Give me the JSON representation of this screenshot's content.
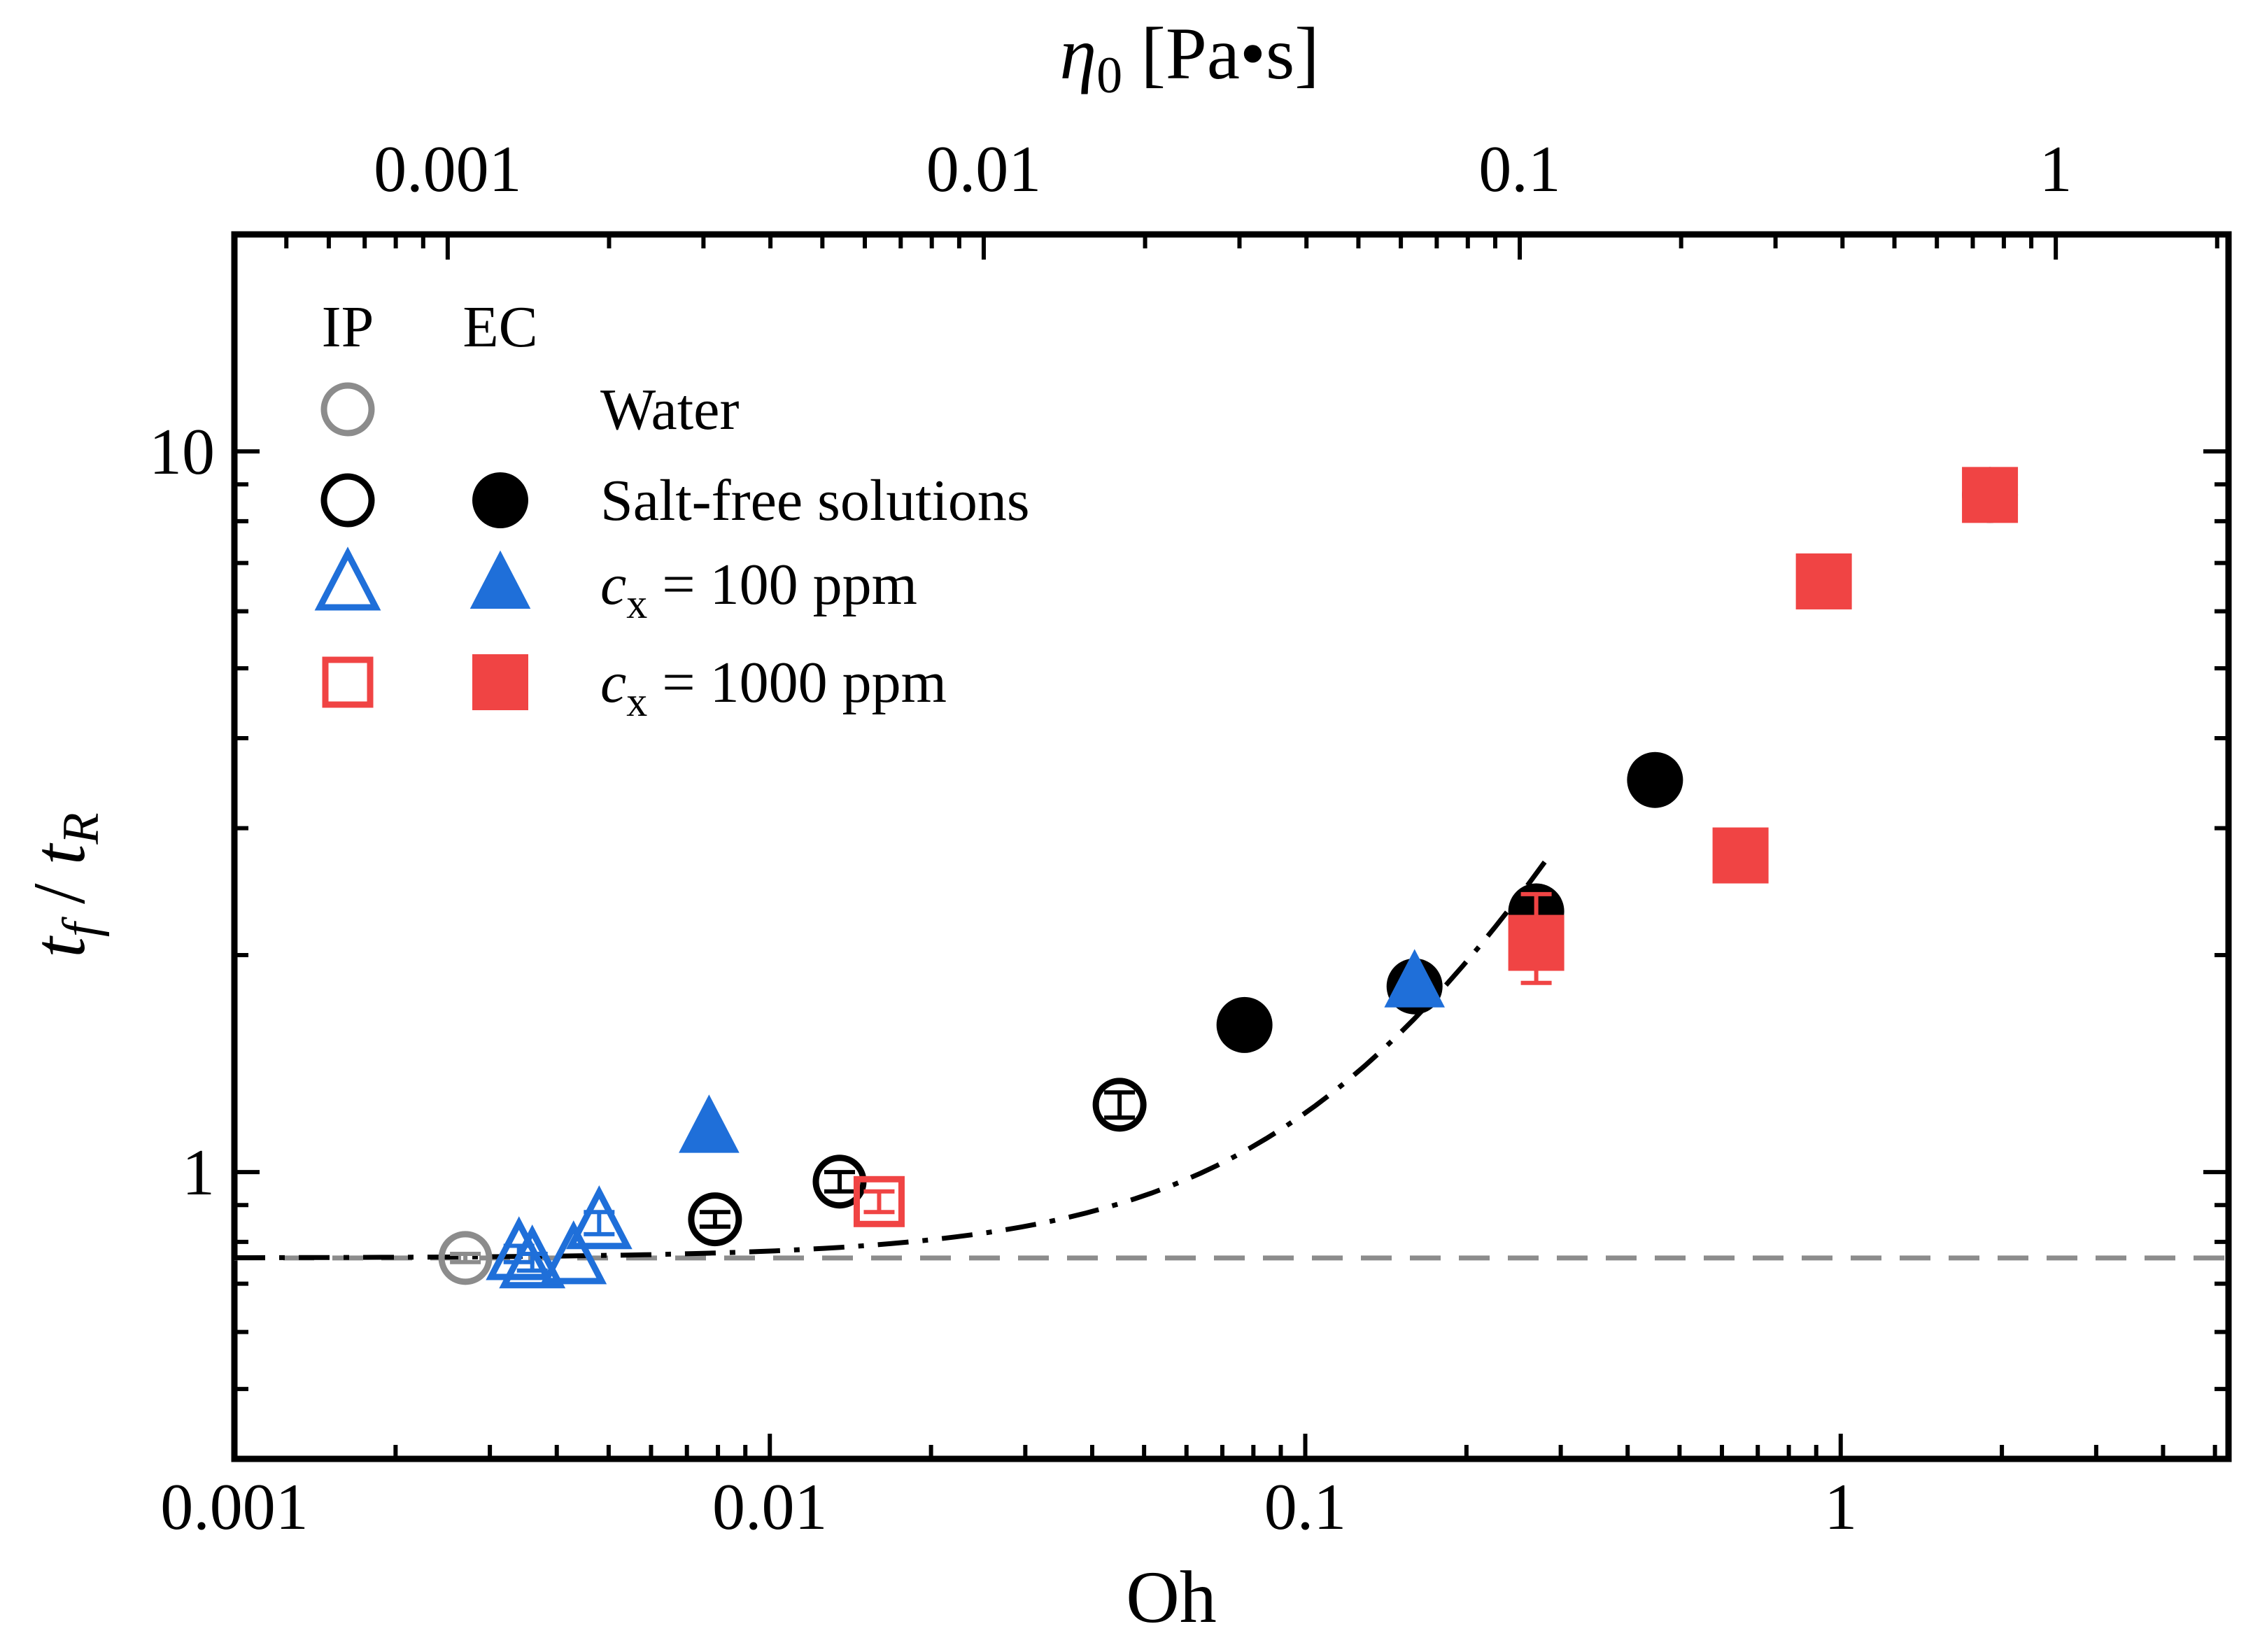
{
  "chart_data": {
    "type": "scatter",
    "xlabel": "Oh",
    "ylabel_parts": [
      "t",
      "f",
      " / ",
      "t",
      "R"
    ],
    "top_xlabel_parts": [
      "η",
      "0",
      " [Pa•s]"
    ],
    "x_scale": "log",
    "y_scale": "log",
    "xlim": [
      0.001,
      5.3
    ],
    "ylim": [
      0.4,
      20
    ],
    "top_xlim": [
      0.0004,
      2.1
    ],
    "x_ticks": [
      {
        "value": 0.001,
        "label": "0.001"
      },
      {
        "value": 0.01,
        "label": "0.01"
      },
      {
        "value": 0.1,
        "label": "0.1"
      },
      {
        "value": 1,
        "label": "1"
      }
    ],
    "top_x_ticks": [
      {
        "value": 0.001,
        "label": "0.001"
      },
      {
        "value": 0.01,
        "label": "0.01"
      },
      {
        "value": 0.1,
        "label": "0.1"
      },
      {
        "value": 1,
        "label": "1"
      }
    ],
    "y_ticks": [
      {
        "value": 1,
        "label": "1"
      },
      {
        "value": 10,
        "label": "10"
      }
    ],
    "grid": false,
    "legend": {
      "placement": "top-left",
      "col_headers": [
        "IP",
        "EC"
      ],
      "entries": [
        {
          "label": "Water",
          "ip_marker": "circle-open",
          "ec_marker": null,
          "color": "#8c8c8c"
        },
        {
          "label": "Salt-free solutions",
          "ip_marker": "circle-open",
          "ec_marker": "circle-filled",
          "color": "#000000"
        },
        {
          "label_italic": "c",
          "label_sub": "x",
          "label_rest": " = 100 ppm",
          "ip_marker": "triangle-open",
          "ec_marker": "triangle-filled",
          "color": "#1f6fd9"
        },
        {
          "label_italic": "c",
          "label_sub": "x",
          "label_rest": " = 1000 ppm",
          "ip_marker": "square-open",
          "ec_marker": "square-filled",
          "color": "#f04444"
        }
      ]
    },
    "series": [
      {
        "name": "Water",
        "marker": "circle-open",
        "color": "#8c8c8c",
        "points": [
          {
            "x": 0.0027,
            "y": 0.76,
            "err": 0.01
          }
        ]
      },
      {
        "name": "Salt-free solutions",
        "marker": "circle-open",
        "color": "#000000",
        "points": [
          {
            "x": 0.0079,
            "y": 0.86,
            "err": 0.02
          },
          {
            "x": 0.0135,
            "y": 0.97,
            "err": 0.03
          },
          {
            "x": 0.045,
            "y": 1.24,
            "err": 0.05
          }
        ]
      },
      {
        "name": "Salt-free solutions",
        "marker": "circle-filled",
        "color": "#000000",
        "points": [
          {
            "x": 0.077,
            "y": 1.6
          },
          {
            "x": 0.16,
            "y": 1.81
          },
          {
            "x": 0.27,
            "y": 2.3,
            "err": 0.15
          },
          {
            "x": 0.45,
            "y": 3.5
          },
          {
            "x": 1.9,
            "y": 8.7
          }
        ]
      },
      {
        "name": "cx = 100 ppm",
        "marker": "triangle-open",
        "color": "#1f6fd9",
        "points": [
          {
            "x": 0.0034,
            "y": 0.77,
            "err": 0.02
          },
          {
            "x": 0.0036,
            "y": 0.75,
            "err": 0.02
          },
          {
            "x": 0.0043,
            "y": 0.76
          },
          {
            "x": 0.0048,
            "y": 0.85,
            "err": 0.03
          }
        ]
      },
      {
        "name": "cx = 100 ppm",
        "marker": "triangle-filled",
        "color": "#1f6fd9",
        "points": [
          {
            "x": 0.0077,
            "y": 1.15
          },
          {
            "x": 0.16,
            "y": 1.83
          }
        ]
      },
      {
        "name": "cx = 1000 ppm",
        "marker": "square-open",
        "color": "#f04444",
        "points": [
          {
            "x": 0.016,
            "y": 0.91,
            "err": 0.03
          }
        ]
      },
      {
        "name": "cx = 1000 ppm",
        "marker": "square-filled",
        "color": "#f04444",
        "points": [
          {
            "x": 0.27,
            "y": 2.08,
            "err_low": 0.25,
            "err_high": 0.35
          },
          {
            "x": 0.65,
            "y": 2.75
          },
          {
            "x": 0.93,
            "y": 6.6
          },
          {
            "x": 1.9,
            "y": 8.7
          }
        ]
      }
    ],
    "reference_lines": [
      {
        "type": "horizontal",
        "y": 0.76,
        "style": "dashed",
        "color": "#8c8c8c"
      },
      {
        "type": "curve",
        "style": "dash-dot",
        "color": "#000000",
        "x_range": [
          0.001,
          0.28
        ]
      }
    ]
  }
}
